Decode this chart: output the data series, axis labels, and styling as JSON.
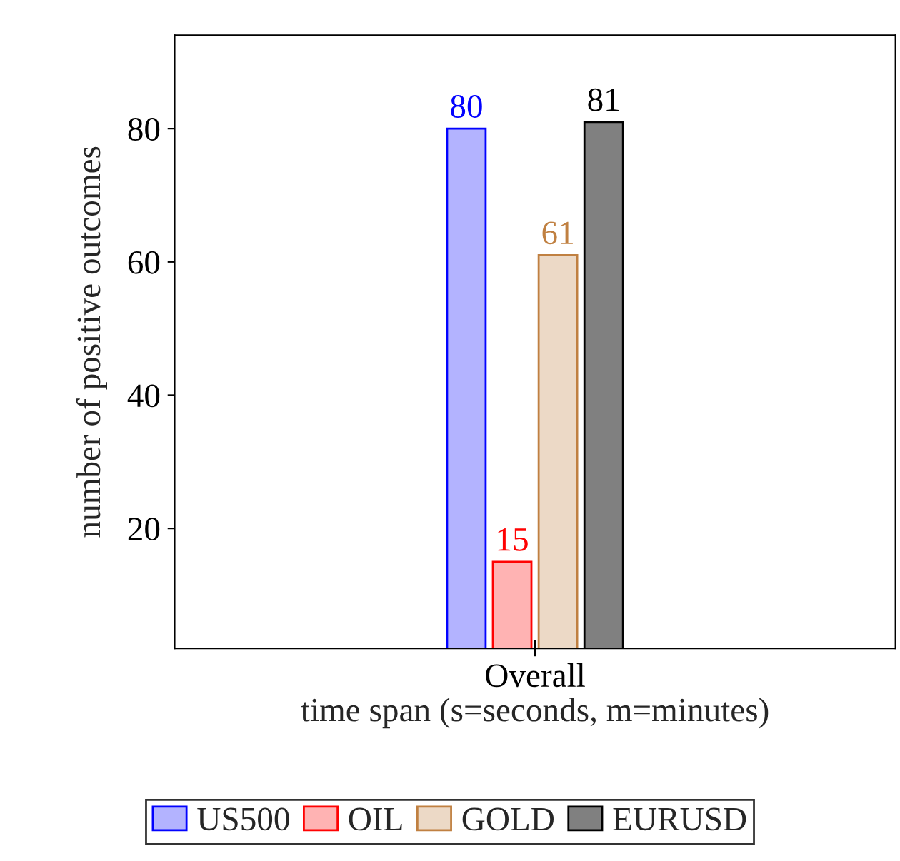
{
  "chart_data": {
    "type": "bar",
    "xlabel": "time span (s=seconds, m=minutes)",
    "ylabel": "number of positive outcomes",
    "categories": [
      "Overall"
    ],
    "series": [
      {
        "name": "US500",
        "color": "#b3b3ff",
        "values": [
          80
        ]
      },
      {
        "name": "OIL",
        "color": "#ffb3b3",
        "values": [
          15
        ]
      },
      {
        "name": "GOLD",
        "color": "#ecd9c6",
        "values": [
          61
        ]
      },
      {
        "name": "EURUSD",
        "color": "#808080",
        "values": [
          81
        ]
      }
    ],
    "ylim": [
      2,
      94
    ],
    "yticks": [
      20,
      40,
      60,
      80
    ],
    "data_labels": true,
    "grid": false,
    "legend": "bottom"
  }
}
